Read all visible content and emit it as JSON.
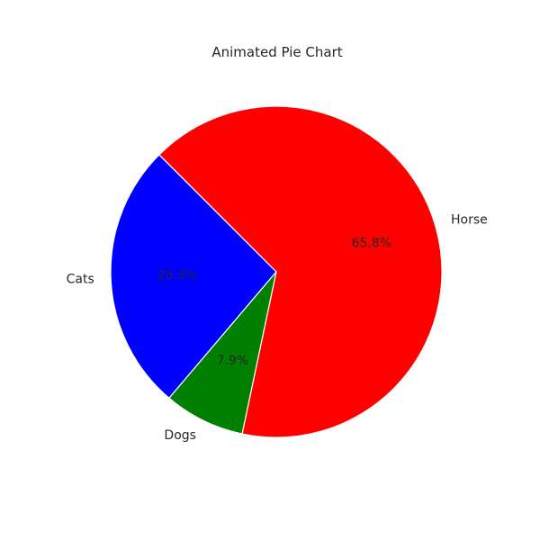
{
  "chart_data": {
    "type": "pie",
    "title": "Animated Pie Chart",
    "start_angle_deg": 135,
    "direction": "counterclockwise",
    "slices": [
      {
        "label": "Cats",
        "value": 26.3,
        "pct_label": "26.3%",
        "color": "#0000ff"
      },
      {
        "label": "Dogs",
        "value": 7.9,
        "pct_label": "7.9%",
        "color": "#008000"
      },
      {
        "label": "Horse",
        "value": 65.8,
        "pct_label": "65.8%",
        "color": "#ff0000"
      }
    ]
  }
}
